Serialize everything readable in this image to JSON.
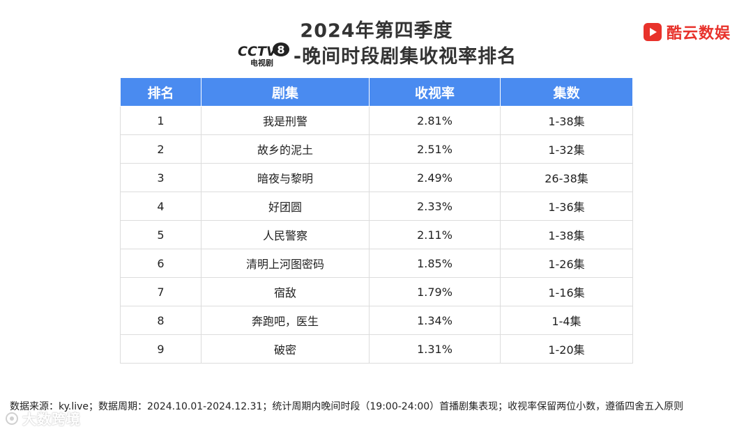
{
  "header": {
    "title_line1": "2024年第四季度",
    "title_line2": "-晚间时段剧集收视率排名",
    "channel_logo": {
      "text": "CCTV",
      "number": "8",
      "caption": "电视剧"
    }
  },
  "brand": {
    "name": "酷云数娱",
    "icon": "play-square-icon",
    "color": "#e8322b"
  },
  "table": {
    "columns": [
      "排名",
      "剧集",
      "收视率",
      "集数"
    ],
    "header_color": "#4a8bf0",
    "rows": [
      {
        "rank": "1",
        "title": "我是刑警",
        "rating": "2.81%",
        "episodes": "1-38集"
      },
      {
        "rank": "2",
        "title": "故乡的泥土",
        "rating": "2.51%",
        "episodes": "1-32集"
      },
      {
        "rank": "3",
        "title": "暗夜与黎明",
        "rating": "2.49%",
        "episodes": "26-38集"
      },
      {
        "rank": "4",
        "title": "好团圆",
        "rating": "2.33%",
        "episodes": "1-36集"
      },
      {
        "rank": "5",
        "title": "人民警察",
        "rating": "2.11%",
        "episodes": "1-38集"
      },
      {
        "rank": "6",
        "title": "清明上河图密码",
        "rating": "1.85%",
        "episodes": "1-26集"
      },
      {
        "rank": "7",
        "title": "宿敌",
        "rating": "1.79%",
        "episodes": "1-16集"
      },
      {
        "rank": "8",
        "title": "奔跑吧，医生",
        "rating": "1.34%",
        "episodes": "1-4集"
      },
      {
        "rank": "9",
        "title": "破密",
        "rating": "1.31%",
        "episodes": "1-20集"
      }
    ]
  },
  "footnote": "数据来源：ky.live；数据周期：2024.10.01-2024.12.31；统计周期内晚间时段（19:00-24:00）首播剧集表现；收视率保留两位小数，遵循四舍五入原则",
  "watermark": {
    "text": "大数跨境",
    "icon": "watermark-logo-icon"
  }
}
